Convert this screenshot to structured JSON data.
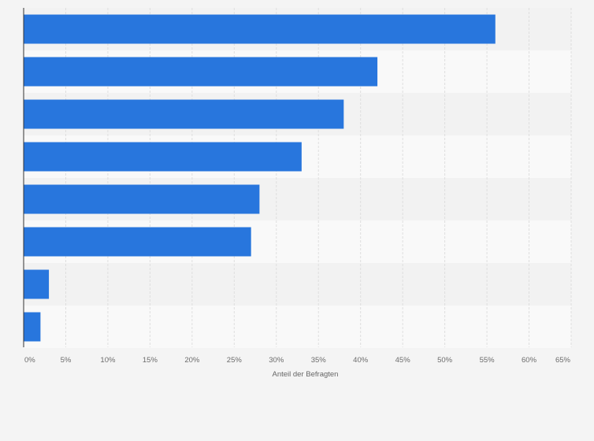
{
  "colors": {
    "page_background": "#f4f4f4",
    "band_light": "#f9f9f9",
    "band_dark": "#f2f2f2",
    "bar": "#2876dd",
    "grid": "#dedede",
    "axis": "#333333"
  },
  "chart_data": {
    "type": "bar",
    "orientation": "horizontal",
    "title": "",
    "xlabel": "Anteil der Befragten",
    "ylabel": "",
    "categories": [
      "",
      "",
      "",
      "",
      "",
      "",
      "",
      ""
    ],
    "values": [
      56,
      42,
      38,
      33,
      28,
      27,
      3,
      2
    ],
    "unit": "%",
    "xlim": [
      0,
      65
    ],
    "ticks": [
      0,
      5,
      10,
      15,
      20,
      25,
      30,
      35,
      40,
      45,
      50,
      55,
      60,
      65
    ],
    "tick_labels": [
      "0%",
      "5%",
      "10%",
      "15%",
      "20%",
      "25%",
      "30%",
      "35%",
      "40%",
      "45%",
      "50%",
      "55%",
      "60%",
      "65%"
    ],
    "grid": true,
    "legend": "none"
  }
}
